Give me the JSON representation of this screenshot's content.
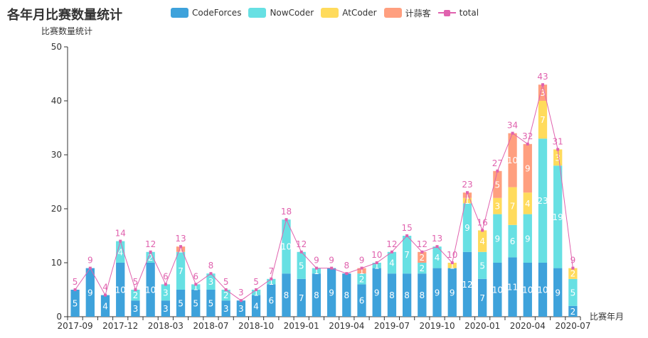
{
  "chart_data": {
    "type": "bar",
    "stacked": true,
    "title": "各年月比赛数量统计",
    "xlabel": "比赛年月",
    "ylabel": "比赛数量统计",
    "ylim": [
      0,
      50
    ],
    "yticks": [
      0,
      10,
      20,
      30,
      40,
      50
    ],
    "xtick_labels": [
      "2017-09",
      "2017-12",
      "2018-03",
      "2018-07",
      "2018-10",
      "2019-01",
      "2019-04",
      "2019-07",
      "2019-10",
      "2020-01",
      "2020-04",
      "2020-07"
    ],
    "xtick_every": 3,
    "grid": false,
    "legend_position": "top",
    "series": [
      {
        "name": "CodeForces",
        "color": "#3ea2db",
        "values": [
          5,
          9,
          4,
          10,
          3,
          10,
          3,
          5,
          5,
          5,
          3,
          3,
          4,
          6,
          8,
          7,
          8,
          9,
          8,
          6,
          9,
          8,
          8,
          8,
          9,
          9,
          12,
          7,
          10,
          11,
          10,
          10,
          9,
          2
        ]
      },
      {
        "name": "NowCoder",
        "color": "#67e0e3",
        "values": [
          0,
          0,
          0,
          4,
          2,
          2,
          3,
          7,
          1,
          3,
          2,
          0,
          1,
          1,
          10,
          5,
          1,
          0,
          0,
          2,
          1,
          4,
          7,
          2,
          4,
          0,
          9,
          5,
          9,
          6,
          9,
          23,
          19,
          5
        ]
      },
      {
        "name": "AtCoder",
        "color": "#ffdb5c",
        "values": [
          0,
          0,
          0,
          0,
          0,
          0,
          0,
          0,
          0,
          0,
          0,
          0,
          0,
          0,
          0,
          0,
          0,
          0,
          0,
          0,
          0,
          0,
          0,
          0,
          0,
          1,
          1,
          4,
          3,
          7,
          4,
          7,
          3,
          2
        ]
      },
      {
        "name": "计蒜客",
        "color": "#ff9f7f",
        "values": [
          0,
          0,
          0,
          0,
          0,
          0,
          0,
          1,
          0,
          0,
          0,
          0,
          0,
          0,
          0,
          0,
          0,
          0,
          0,
          1,
          0,
          0,
          0,
          2,
          0,
          0,
          1,
          0,
          5,
          10,
          9,
          3,
          0,
          0
        ]
      },
      {
        "name": "total",
        "type": "line",
        "color": "#e062ae",
        "values": [
          5,
          9,
          4,
          14,
          5,
          12,
          6,
          13,
          6,
          8,
          5,
          3,
          5,
          7,
          18,
          12,
          9,
          9,
          8,
          9,
          10,
          12,
          15,
          12,
          13,
          10,
          23,
          16,
          27,
          34,
          32,
          43,
          31,
          9
        ]
      }
    ]
  }
}
